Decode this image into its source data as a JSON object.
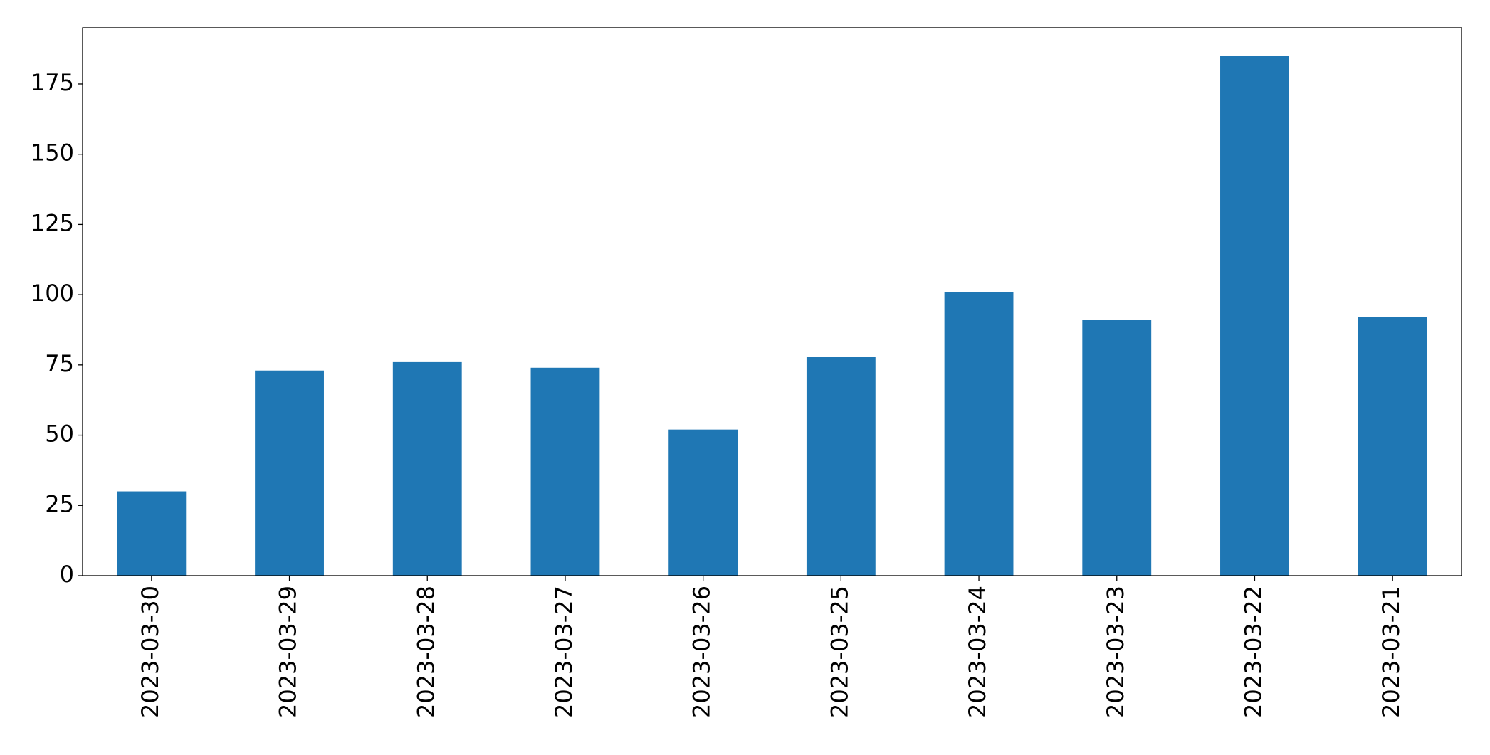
{
  "chart_data": {
    "type": "bar",
    "categories": [
      "2023-03-30",
      "2023-03-29",
      "2023-03-28",
      "2023-03-27",
      "2023-03-26",
      "2023-03-25",
      "2023-03-24",
      "2023-03-23",
      "2023-03-22",
      "2023-03-21"
    ],
    "values": [
      30,
      73,
      76,
      74,
      52,
      78,
      101,
      91,
      185,
      92
    ],
    "color": "#1f77b4",
    "ylim": [
      0,
      195
    ],
    "yticks": [
      0,
      25,
      50,
      75,
      100,
      125,
      150,
      175
    ],
    "grid": false
  }
}
